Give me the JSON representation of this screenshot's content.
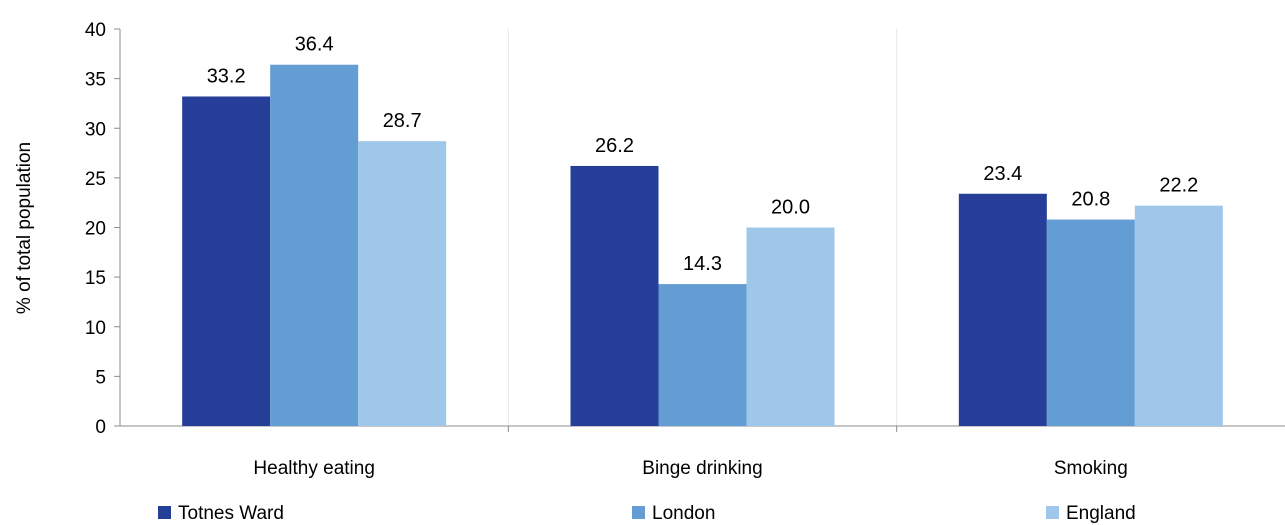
{
  "chart_data": {
    "type": "bar",
    "title": "",
    "xlabel": "",
    "ylabel": "% of total population",
    "ylim": [
      0,
      40
    ],
    "yticks": [
      0,
      5,
      10,
      15,
      20,
      25,
      30,
      35,
      40
    ],
    "grid": "vertical separators between categories",
    "legend_position": "bottom",
    "categories": [
      "Healthy eating",
      "Binge drinking",
      "Smoking"
    ],
    "series": [
      {
        "name": "Totnes Ward",
        "color": "#253f98",
        "values": [
          33.2,
          26.2,
          23.4
        ],
        "labels": [
          "33.2",
          "26.2",
          "23.4"
        ]
      },
      {
        "name": "London",
        "color": "#649dd4",
        "values": [
          36.4,
          14.3,
          20.8
        ],
        "labels": [
          "36.4",
          "14.3",
          "20.8"
        ]
      },
      {
        "name": "England",
        "color": "#9fc7ea",
        "values": [
          28.7,
          20.0,
          22.2
        ],
        "labels": [
          "28.7",
          "20.0",
          "22.2"
        ]
      }
    ]
  }
}
